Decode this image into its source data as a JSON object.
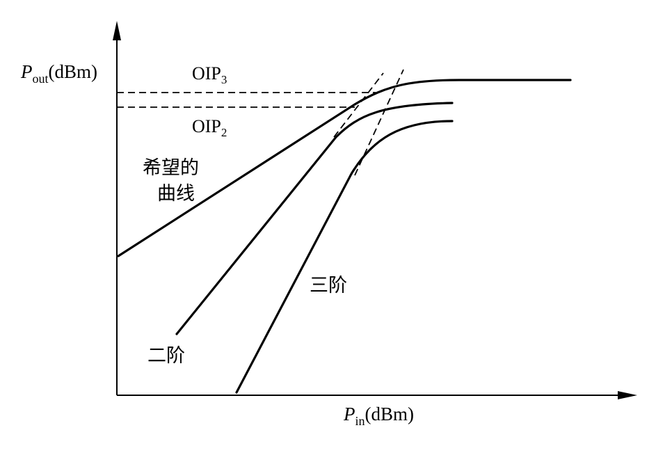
{
  "axes": {
    "y_label": {
      "symbol": "P",
      "sub": "out",
      "unit": "(dBm)"
    },
    "x_label": {
      "symbol": "P",
      "sub": "in",
      "unit": "(dBm)"
    }
  },
  "intercepts": {
    "oip3": {
      "base": "OIP",
      "sub": "3"
    },
    "oip2": {
      "base": "OIP",
      "sub": "2"
    }
  },
  "curves": {
    "desired_line1": "希望的",
    "desired_line2": "曲线",
    "second_order": "二阶",
    "third_order": "三阶"
  }
}
